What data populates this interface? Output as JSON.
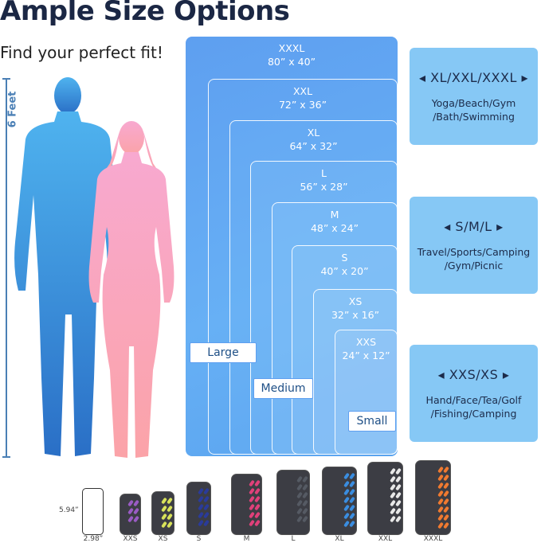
{
  "title": "Ample Size Options",
  "subtitle": "Find your perfect fit!",
  "height_label": "6 Feet",
  "sizes": [
    {
      "name": "XXXL",
      "dims": "80” x 40”"
    },
    {
      "name": "XXL",
      "dims": "72” x 36”"
    },
    {
      "name": "XL",
      "dims": "64” x 32”"
    },
    {
      "name": "L",
      "dims": "56” x 28”"
    },
    {
      "name": "M",
      "dims": "48” x 24”"
    },
    {
      "name": "S",
      "dims": "40” x 20”"
    },
    {
      "name": "XS",
      "dims": "32” x 16”"
    },
    {
      "name": "XXS",
      "dims": "24” x 12”"
    }
  ],
  "groups": {
    "large": "Large",
    "medium": "Medium",
    "small": "Small"
  },
  "uses": [
    {
      "heading": "◂ XL/XXL/XXXL ▸",
      "desc": "Yoga/Beach/Gym /Bath/Swimming"
    },
    {
      "heading": "◂   S/M/L   ▸",
      "desc": "Travel/Sports/Camping /Gym/Picnic"
    },
    {
      "heading": "◂  XXS/XS  ▸",
      "desc": "Hand/Face/Tea/Golf /Fishing/Camping"
    }
  ],
  "phone": {
    "height": "5.94”",
    "width": "2.98”"
  },
  "pouches": [
    {
      "label": "XXS",
      "color": "#9a5bc4"
    },
    {
      "label": "XS",
      "color": "#d8e25a"
    },
    {
      "label": "S",
      "color": "#2a3b9a"
    },
    {
      "label": "M",
      "color": "#e0407a"
    },
    {
      "label": "L",
      "color": "#555a63"
    },
    {
      "label": "XL",
      "color": "#3a8de0"
    },
    {
      "label": "XXL",
      "color": "#e8e8e8"
    },
    {
      "label": "XXXL",
      "color": "#f07a30"
    }
  ],
  "colors": {
    "male": "#3a8fdc",
    "female": "#f7a8c4",
    "accent": "#5e9ff0"
  }
}
